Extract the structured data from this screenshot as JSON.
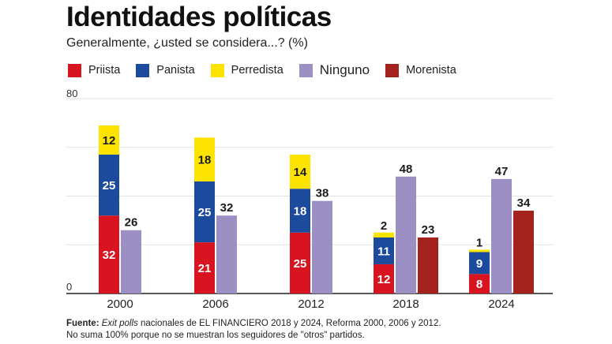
{
  "header": {
    "title": "Identidades políticas",
    "subtitle": "Generalmente, ¿usted se considera...? (%)"
  },
  "legend": [
    {
      "label": "Priista",
      "color": "#d7141f"
    },
    {
      "label": "Panista",
      "color": "#1c4a9c"
    },
    {
      "label": "Perredista",
      "color": "#fce300"
    },
    {
      "label": "Ninguno",
      "color": "#9b8fc4"
    },
    {
      "label": "Morenista",
      "color": "#a3231c"
    }
  ],
  "chart_data": {
    "type": "bar",
    "title": "Identidades políticas",
    "subtitle": "Generalmente, ¿usted se considera...? (%)",
    "categories": [
      "2000",
      "2006",
      "2012",
      "2018",
      "2024"
    ],
    "ylim": [
      0,
      80
    ],
    "y_ticks": [
      "0",
      "80"
    ],
    "grid": true,
    "legend_position": "top",
    "stacked_series": [
      {
        "name": "Priista",
        "color": "#d7141f",
        "values": [
          32,
          21,
          25,
          12,
          8
        ]
      },
      {
        "name": "Panista",
        "color": "#1c4a9c",
        "values": [
          25,
          25,
          18,
          11,
          9
        ]
      },
      {
        "name": "Perredista",
        "color": "#fce300",
        "values": [
          12,
          18,
          14,
          2,
          1
        ]
      }
    ],
    "side_series": [
      {
        "name": "Ninguno",
        "color": "#9b8fc4",
        "values": [
          26,
          32,
          38,
          48,
          47
        ]
      },
      {
        "name": "Morenista",
        "color": "#a3231c",
        "values": [
          null,
          null,
          null,
          23,
          34
        ]
      }
    ]
  },
  "footer": {
    "source_label": "Fuente:",
    "source_italic": "Exit polls",
    "source_text": " nacionales de EL FINANCIERO 2018 y 2024, Reforma 2000, 2006 y 2012.",
    "note": "No suma 100% porque no se muestran los seguidores de \"otros\" partidos."
  }
}
